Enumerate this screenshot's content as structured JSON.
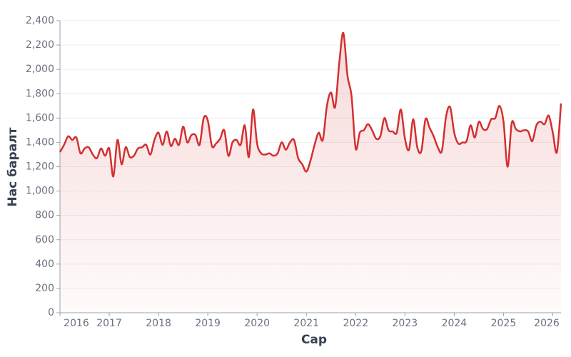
{
  "chart_data": {
    "type": "line",
    "x_label": "Сар",
    "y_label": "Нас баралт",
    "x": [
      "2016-01",
      "2016-02",
      "2016-03",
      "2016-04",
      "2016-05",
      "2016-06",
      "2016-07",
      "2016-08",
      "2016-09",
      "2016-10",
      "2016-11",
      "2016-12",
      "2017-01",
      "2017-02",
      "2017-03",
      "2017-04",
      "2017-05",
      "2017-06",
      "2017-07",
      "2017-08",
      "2017-09",
      "2017-10",
      "2017-11",
      "2017-12",
      "2018-01",
      "2018-02",
      "2018-03",
      "2018-04",
      "2018-05",
      "2018-06",
      "2018-07",
      "2018-08",
      "2018-09",
      "2018-10",
      "2018-11",
      "2018-12",
      "2019-01",
      "2019-02",
      "2019-03",
      "2019-04",
      "2019-05",
      "2019-06",
      "2019-07",
      "2019-08",
      "2019-09",
      "2019-10",
      "2019-11",
      "2019-12",
      "2020-01",
      "2020-02",
      "2020-03",
      "2020-04",
      "2020-05",
      "2020-06",
      "2020-07",
      "2020-08",
      "2020-09",
      "2020-10",
      "2020-11",
      "2020-12",
      "2021-01",
      "2021-02",
      "2021-03",
      "2021-04",
      "2021-05",
      "2021-06",
      "2021-07",
      "2021-08",
      "2021-09",
      "2021-10",
      "2021-11",
      "2021-12",
      "2022-01",
      "2022-02",
      "2022-03",
      "2022-04",
      "2022-05",
      "2022-06",
      "2022-07",
      "2022-08",
      "2022-09",
      "2022-10",
      "2022-11",
      "2022-12",
      "2023-01",
      "2023-02",
      "2023-03",
      "2023-04",
      "2023-05",
      "2023-06",
      "2023-07",
      "2023-08",
      "2023-09",
      "2023-10",
      "2023-11",
      "2023-12",
      "2024-01",
      "2024-02",
      "2024-03",
      "2024-04",
      "2024-05",
      "2024-06",
      "2024-07",
      "2024-08",
      "2024-09",
      "2024-10",
      "2024-11",
      "2024-12",
      "2025-01",
      "2025-02",
      "2025-03",
      "2025-04",
      "2025-05",
      "2025-06",
      "2025-07",
      "2025-08",
      "2025-09",
      "2025-10",
      "2025-11",
      "2025-12",
      "2026-01",
      "2026-02",
      "2026-03"
    ],
    "series": [
      {
        "name": "Нас баралт",
        "color": "#d32f2f",
        "values": [
          1320,
          1380,
          1450,
          1420,
          1440,
          1310,
          1350,
          1360,
          1300,
          1270,
          1350,
          1290,
          1350,
          1120,
          1420,
          1220,
          1360,
          1280,
          1290,
          1350,
          1360,
          1380,
          1300,
          1420,
          1480,
          1380,
          1490,
          1370,
          1430,
          1380,
          1530,
          1400,
          1460,
          1460,
          1380,
          1600,
          1580,
          1370,
          1390,
          1430,
          1500,
          1290,
          1400,
          1420,
          1380,
          1540,
          1280,
          1670,
          1390,
          1310,
          1300,
          1310,
          1290,
          1310,
          1400,
          1340,
          1400,
          1420,
          1270,
          1220,
          1160,
          1250,
          1380,
          1480,
          1420,
          1700,
          1810,
          1690,
          2050,
          2300,
          1950,
          1780,
          1350,
          1480,
          1500,
          1550,
          1500,
          1430,
          1450,
          1600,
          1500,
          1490,
          1480,
          1670,
          1430,
          1340,
          1590,
          1360,
          1330,
          1590,
          1520,
          1450,
          1360,
          1330,
          1610,
          1690,
          1480,
          1390,
          1400,
          1410,
          1540,
          1440,
          1570,
          1510,
          1510,
          1590,
          1600,
          1700,
          1570,
          1200,
          1560,
          1510,
          1490,
          1500,
          1490,
          1410,
          1540,
          1570,
          1550,
          1620,
          1480,
          1320,
          1720
        ]
      }
    ],
    "xlim": [
      "2016-01",
      "2026-03"
    ],
    "xticks": [
      2016,
      2017,
      2018,
      2019,
      2020,
      2021,
      2022,
      2023,
      2024,
      2025,
      2026
    ],
    "ylim": [
      0,
      2400
    ],
    "yticks": [
      0,
      200,
      400,
      600,
      800,
      {
        "value": 1000,
        "label": "1,000"
      },
      {
        "value": 1200,
        "label": "1,200"
      },
      {
        "value": 1400,
        "label": "1,400"
      },
      {
        "value": 1600,
        "label": "1,600"
      },
      {
        "value": 1800,
        "label": "1,800"
      },
      {
        "value": 2000,
        "label": "2,000"
      },
      {
        "value": 2200,
        "label": "2,200"
      },
      {
        "value": 2400,
        "label": "2,400"
      }
    ],
    "grid": true,
    "area_fill": true
  }
}
